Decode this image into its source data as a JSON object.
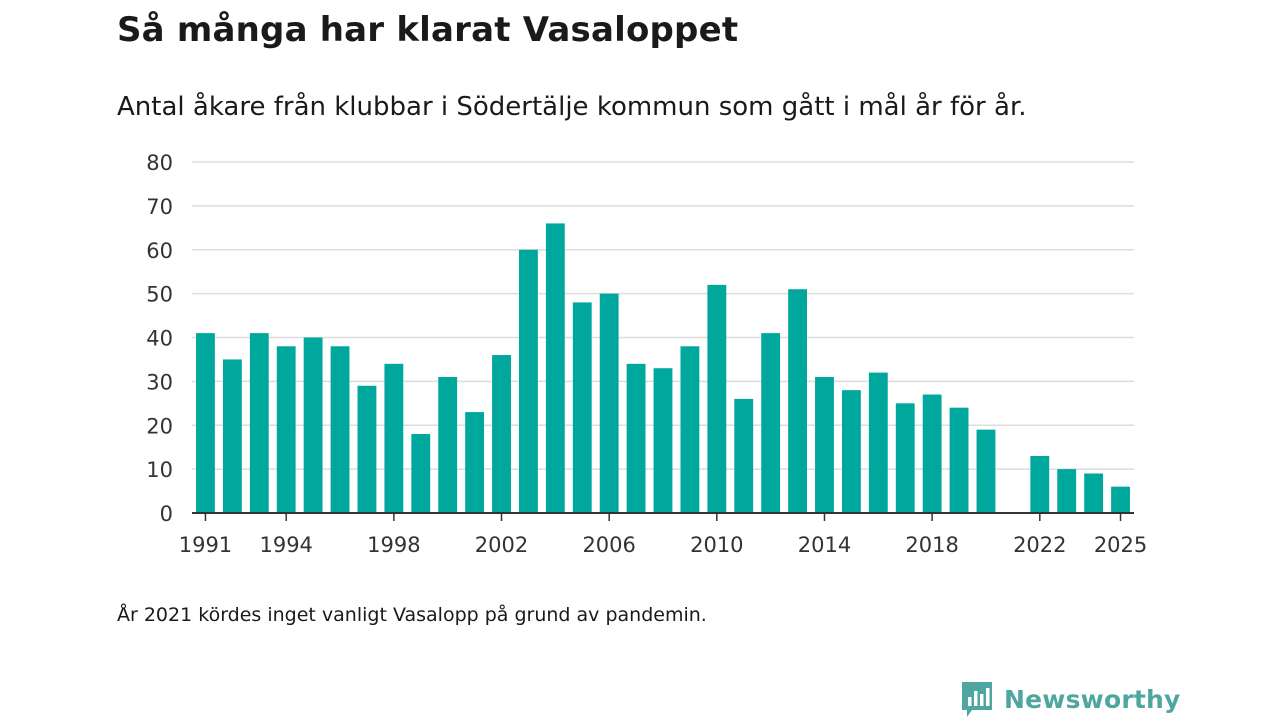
{
  "chart_data": {
    "type": "bar",
    "title": "Så många har klarat Vasaloppet",
    "subtitle": "Antal åkare från klubbar i Södertälje kommun som gått i mål år för år.",
    "categories": [
      1991,
      1992,
      1993,
      1994,
      1995,
      1996,
      1997,
      1998,
      1999,
      2000,
      2001,
      2002,
      2003,
      2004,
      2005,
      2006,
      2007,
      2008,
      2009,
      2010,
      2011,
      2012,
      2013,
      2014,
      2015,
      2016,
      2017,
      2018,
      2019,
      2020,
      2021,
      2022,
      2023,
      2024,
      2025
    ],
    "values": [
      41,
      35,
      41,
      38,
      40,
      38,
      29,
      34,
      18,
      31,
      23,
      36,
      60,
      66,
      48,
      50,
      34,
      33,
      38,
      52,
      26,
      41,
      51,
      31,
      28,
      32,
      25,
      27,
      24,
      19,
      null,
      13,
      10,
      9,
      6
    ],
    "x_tick_labels": [
      "1991",
      "1994",
      "1998",
      "2002",
      "2006",
      "2010",
      "2014",
      "2018",
      "2022",
      "2025"
    ],
    "y_ticks": [
      0,
      10,
      20,
      30,
      40,
      50,
      60,
      70,
      80
    ],
    "ylim": [
      0,
      80
    ],
    "xlabel": "",
    "ylabel": "",
    "grid": true,
    "bar_color": "#00a79d"
  },
  "footnote": "År 2021 kördes inget vanligt Vasalopp på grund av pandemin.",
  "brand": {
    "name": "Newsworthy",
    "color": "#4fa6a0",
    "icon": "bar-chart-speech-bubble-icon"
  }
}
